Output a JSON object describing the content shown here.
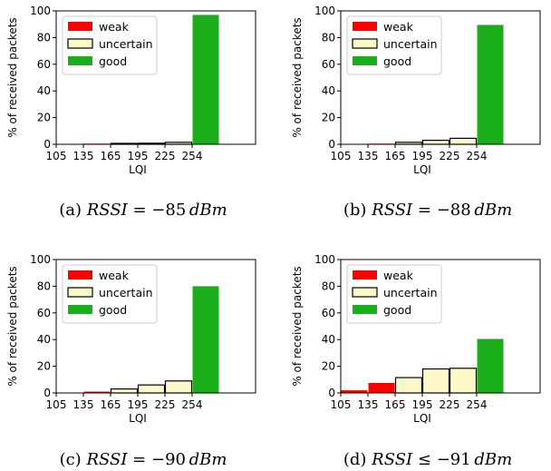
{
  "legend": {
    "weak": "weak",
    "uncertain": "uncertain",
    "good": "good"
  },
  "colors": {
    "weak": "#ff0000",
    "uncertain": "#fff8c8",
    "good": "#1aaf1a",
    "edge": "#000000"
  },
  "chart_data": [
    {
      "type": "bar",
      "caption": {
        "prefix": "(a) ",
        "lhs": "RSSI",
        "rel": " = ",
        "rhs": "−85",
        "unit": "dBm"
      },
      "xlabel": "LQI",
      "ylabel": "% of received packets",
      "ylim": [
        0,
        100
      ],
      "yticks": [
        0,
        20,
        40,
        60,
        80,
        100
      ],
      "xtick_labels": [
        "105",
        "135",
        "165",
        "195",
        "225",
        "254"
      ],
      "bars": [
        {
          "bin": "105-135",
          "class": "weak",
          "value": 0.3
        },
        {
          "bin": "135-165",
          "class": "weak",
          "value": 0.5
        },
        {
          "bin": "165-195",
          "class": "uncertain",
          "value": 0.7
        },
        {
          "bin": "195-225",
          "class": "uncertain",
          "value": 0.8
        },
        {
          "bin": "225-254",
          "class": "uncertain",
          "value": 1.5
        },
        {
          "bin": "254",
          "class": "good",
          "value": 97
        }
      ]
    },
    {
      "type": "bar",
      "caption": {
        "prefix": "(b) ",
        "lhs": "RSSI",
        "rel": " = ",
        "rhs": "−88",
        "unit": "dBm"
      },
      "xlabel": "LQI",
      "ylabel": "% of received packets",
      "ylim": [
        0,
        100
      ],
      "yticks": [
        0,
        20,
        40,
        60,
        80,
        100
      ],
      "xtick_labels": [
        "105",
        "135",
        "165",
        "195",
        "225",
        "254"
      ],
      "bars": [
        {
          "bin": "105-135",
          "class": "weak",
          "value": 0.3
        },
        {
          "bin": "135-165",
          "class": "weak",
          "value": 0.5
        },
        {
          "bin": "165-195",
          "class": "uncertain",
          "value": 1.5
        },
        {
          "bin": "195-225",
          "class": "uncertain",
          "value": 3.0
        },
        {
          "bin": "225-254",
          "class": "uncertain",
          "value": 4.5
        },
        {
          "bin": "254",
          "class": "good",
          "value": 89.5
        }
      ]
    },
    {
      "type": "bar",
      "caption": {
        "prefix": "(c) ",
        "lhs": "RSSI",
        "rel": " = ",
        "rhs": "−90",
        "unit": "dBm"
      },
      "xlabel": "LQI",
      "ylabel": "% of received packets",
      "ylim": [
        0,
        100
      ],
      "yticks": [
        0,
        20,
        40,
        60,
        80,
        100
      ],
      "xtick_labels": [
        "105",
        "135",
        "165",
        "195",
        "225",
        "254"
      ],
      "bars": [
        {
          "bin": "105-135",
          "class": "weak",
          "value": 0.2
        },
        {
          "bin": "135-165",
          "class": "weak",
          "value": 1.0
        },
        {
          "bin": "165-195",
          "class": "uncertain",
          "value": 3.0
        },
        {
          "bin": "195-225",
          "class": "uncertain",
          "value": 6.0
        },
        {
          "bin": "225-254",
          "class": "uncertain",
          "value": 9.0
        },
        {
          "bin": "254",
          "class": "good",
          "value": 80
        }
      ]
    },
    {
      "type": "bar",
      "caption": {
        "prefix": "(d) ",
        "lhs": "RSSI",
        "rel": " ≤ ",
        "rhs": "−91",
        "unit": "dBm"
      },
      "xlabel": "LQI",
      "ylabel": "% of received packets",
      "ylim": [
        0,
        100
      ],
      "yticks": [
        0,
        20,
        40,
        60,
        80,
        100
      ],
      "xtick_labels": [
        "105",
        "135",
        "165",
        "195",
        "225",
        "254"
      ],
      "bars": [
        {
          "bin": "105-135",
          "class": "weak",
          "value": 2.0
        },
        {
          "bin": "135-165",
          "class": "weak",
          "value": 7.5
        },
        {
          "bin": "165-195",
          "class": "uncertain",
          "value": 11.5
        },
        {
          "bin": "195-225",
          "class": "uncertain",
          "value": 18.0
        },
        {
          "bin": "225-254",
          "class": "uncertain",
          "value": 18.5
        },
        {
          "bin": "254",
          "class": "good",
          "value": 40.5
        }
      ]
    }
  ]
}
